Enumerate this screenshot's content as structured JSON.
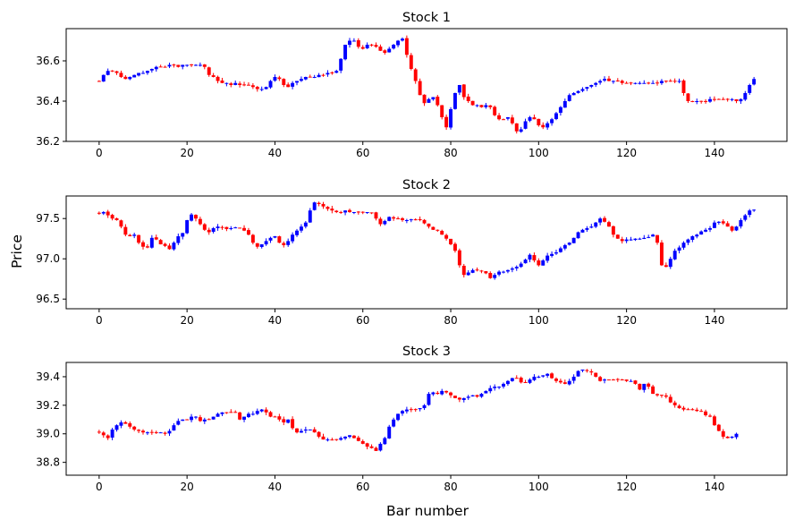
{
  "figure": {
    "ylabel": "Price",
    "xlabel": "Bar number",
    "up_color": "#0000ff",
    "down_color": "#ff0000"
  },
  "chart_data": [
    {
      "type": "candlestick",
      "title": "Stock 1",
      "xlim": [
        -7.5,
        156.5
      ],
      "ylim": [
        36.2,
        36.76
      ],
      "x_ticks": [
        0,
        20,
        40,
        60,
        80,
        100,
        120,
        140
      ],
      "y_ticks": [
        36.2,
        36.4,
        36.6
      ],
      "y_tick_labels": [
        "36.2",
        "36.4",
        "36.6"
      ],
      "close_path": [
        36.5,
        36.53,
        36.55,
        36.55,
        36.54,
        36.52,
        36.51,
        36.52,
        36.53,
        36.54,
        36.54,
        36.55,
        36.56,
        36.57,
        36.57,
        36.57,
        36.58,
        36.58,
        36.57,
        36.58,
        36.58,
        36.58,
        36.58,
        36.58,
        36.57,
        36.53,
        36.52,
        36.5,
        36.49,
        36.49,
        36.48,
        36.49,
        36.48,
        36.48,
        36.48,
        36.47,
        36.46,
        36.46,
        36.47,
        36.5,
        36.52,
        36.51,
        36.48,
        36.47,
        36.49,
        36.5,
        36.51,
        36.52,
        36.52,
        36.52,
        36.53,
        36.53,
        36.54,
        36.54,
        36.55,
        36.61,
        36.68,
        36.7,
        36.7,
        36.67,
        36.66,
        36.68,
        36.68,
        36.67,
        36.65,
        36.64,
        36.66,
        36.68,
        36.7,
        36.71,
        36.63,
        36.56,
        36.5,
        36.43,
        36.39,
        36.41,
        36.42,
        36.38,
        36.32,
        36.27,
        36.36,
        36.44,
        36.48,
        36.42,
        36.4,
        36.38,
        36.38,
        36.37,
        36.38,
        36.37,
        36.33,
        36.31,
        36.31,
        36.32,
        36.29,
        36.25,
        36.26,
        36.3,
        36.32,
        36.31,
        36.28,
        36.27,
        36.29,
        36.31,
        36.34,
        36.37,
        36.4,
        36.43,
        36.44,
        36.45,
        36.46,
        36.47,
        36.48,
        36.49,
        36.5,
        36.51,
        36.5,
        36.5,
        36.5,
        36.49,
        36.49,
        36.49,
        36.49,
        36.49,
        36.49,
        36.49,
        36.49,
        36.49,
        36.5,
        36.5,
        36.5,
        36.5,
        36.5,
        36.44,
        36.4,
        36.4,
        36.4,
        36.4,
        36.4,
        36.41,
        36.41,
        36.41,
        36.41,
        36.41,
        36.41,
        36.4,
        36.41,
        36.44,
        36.48,
        36.51
      ]
    },
    {
      "type": "candlestick",
      "title": "Stock 2",
      "xlim": [
        -7.5,
        156.5
      ],
      "ylim": [
        96.38,
        97.78
      ],
      "x_ticks": [
        0,
        20,
        40,
        60,
        80,
        100,
        120,
        140
      ],
      "y_ticks": [
        96.5,
        97.0,
        97.5
      ],
      "y_tick_labels": [
        "96.5",
        "97.0",
        "97.5"
      ],
      "close_path": [
        97.56,
        97.58,
        97.54,
        97.5,
        97.48,
        97.4,
        97.3,
        97.28,
        97.3,
        97.2,
        97.15,
        97.14,
        97.26,
        97.24,
        97.18,
        97.16,
        97.12,
        97.2,
        97.28,
        97.32,
        97.48,
        97.55,
        97.5,
        97.43,
        97.36,
        97.33,
        97.38,
        97.4,
        97.39,
        97.37,
        97.38,
        97.39,
        97.38,
        97.35,
        97.3,
        97.2,
        97.15,
        97.18,
        97.22,
        97.26,
        97.28,
        97.2,
        97.17,
        97.22,
        97.3,
        97.35,
        97.4,
        97.45,
        97.6,
        97.7,
        97.68,
        97.65,
        97.62,
        97.6,
        97.58,
        97.58,
        97.6,
        97.58,
        97.58,
        97.58,
        97.58,
        97.58,
        97.57,
        97.5,
        97.43,
        97.47,
        97.52,
        97.5,
        97.5,
        97.48,
        97.48,
        97.49,
        97.49,
        97.48,
        97.44,
        97.4,
        97.36,
        97.35,
        97.3,
        97.25,
        97.18,
        97.1,
        96.92,
        96.8,
        96.83,
        96.86,
        96.86,
        96.85,
        96.82,
        96.76,
        96.8,
        96.84,
        96.84,
        96.86,
        96.88,
        96.9,
        96.94,
        96.99,
        97.05,
        96.98,
        96.92,
        96.98,
        97.04,
        97.06,
        97.08,
        97.13,
        97.17,
        97.2,
        97.26,
        97.33,
        97.36,
        97.38,
        97.4,
        97.45,
        97.5,
        97.46,
        97.4,
        97.3,
        97.25,
        97.22,
        97.24,
        97.24,
        97.25,
        97.25,
        97.26,
        97.27,
        97.3,
        97.2,
        96.92,
        96.9,
        97.0,
        97.1,
        97.14,
        97.2,
        97.24,
        97.28,
        97.3,
        97.34,
        97.36,
        97.38,
        97.45,
        97.46,
        97.44,
        97.4,
        97.35,
        97.4,
        97.48,
        97.54,
        97.6,
        97.61
      ]
    },
    {
      "type": "candlestick",
      "title": "Stock 3",
      "xlim": [
        -7.5,
        156.5
      ],
      "ylim": [
        38.71,
        39.5
      ],
      "x_ticks": [
        0,
        20,
        40,
        60,
        80,
        100,
        120,
        140
      ],
      "y_ticks": [
        38.8,
        39.0,
        39.2,
        39.4
      ],
      "y_tick_labels": [
        "38.8",
        "39.0",
        "39.2",
        "39.4"
      ],
      "close_path": [
        39.01,
        38.99,
        38.97,
        39.03,
        39.06,
        39.08,
        39.07,
        39.05,
        39.03,
        39.02,
        39.01,
        39.01,
        39.01,
        39.01,
        39.01,
        39.0,
        39.02,
        39.06,
        39.09,
        39.1,
        39.1,
        39.12,
        39.12,
        39.09,
        39.1,
        39.1,
        39.12,
        39.14,
        39.15,
        39.15,
        39.15,
        39.15,
        39.1,
        39.12,
        39.14,
        39.14,
        39.16,
        39.17,
        39.15,
        39.12,
        39.12,
        39.1,
        39.08,
        39.1,
        39.04,
        39.01,
        39.02,
        39.03,
        39.03,
        39.01,
        38.98,
        38.96,
        38.96,
        38.96,
        38.96,
        38.97,
        38.98,
        38.99,
        38.97,
        38.95,
        38.93,
        38.91,
        38.9,
        38.88,
        38.93,
        38.97,
        39.05,
        39.1,
        39.14,
        39.16,
        39.17,
        39.17,
        39.17,
        39.18,
        39.2,
        39.28,
        39.29,
        39.28,
        39.3,
        39.29,
        39.27,
        39.25,
        39.24,
        39.25,
        39.26,
        39.27,
        39.26,
        39.28,
        39.3,
        39.32,
        39.33,
        39.33,
        39.35,
        39.37,
        39.39,
        39.39,
        39.36,
        39.36,
        39.38,
        39.4,
        39.4,
        39.41,
        39.42,
        39.39,
        39.37,
        39.36,
        39.35,
        39.37,
        39.4,
        39.44,
        39.45,
        39.44,
        39.43,
        39.4,
        39.37,
        39.38,
        39.38,
        39.38,
        39.38,
        39.38,
        39.37,
        39.37,
        39.35,
        39.31,
        39.35,
        39.33,
        39.28,
        39.27,
        39.27,
        39.26,
        39.22,
        39.2,
        39.18,
        39.17,
        39.17,
        39.17,
        39.16,
        39.16,
        39.13,
        39.12,
        39.06,
        39.02,
        38.98,
        38.97,
        38.98,
        39.0
      ]
    }
  ]
}
